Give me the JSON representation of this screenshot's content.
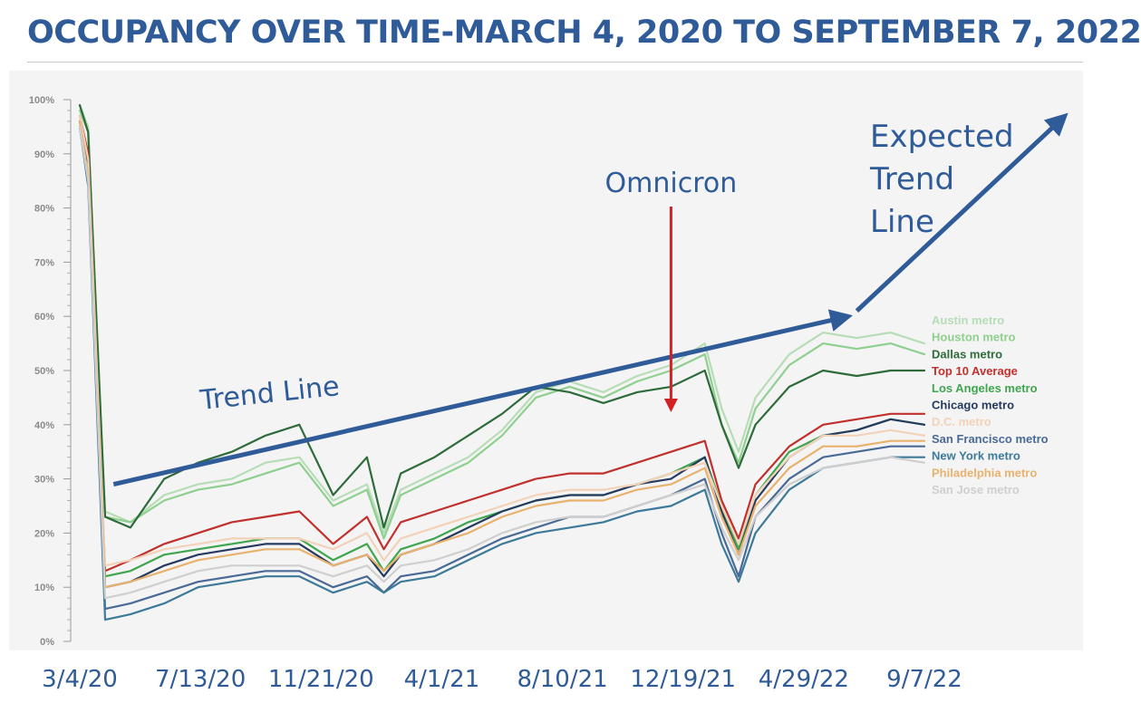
{
  "chart_data": {
    "type": "line",
    "title": "OCCUPANCY OVER TIME-MARCH 4, 2020 TO SEPTEMBER 7, 2022",
    "xlabel": "",
    "ylabel": "",
    "x_tick_labels": [
      "3/4/20",
      "7/13/20",
      "11/21/20",
      "4/1/21",
      "8/10/21",
      "12/19/21",
      "4/29/22",
      "9/7/22"
    ],
    "y_ticks": [
      "0%",
      "10%",
      "20%",
      "30%",
      "40%",
      "50%",
      "60%",
      "70%",
      "80%",
      "90%",
      "100%"
    ],
    "ylim": [
      0,
      100
    ],
    "grid": false,
    "legend_position": "right",
    "x_period_fractions": [
      0,
      0.01,
      0.03,
      0.06,
      0.1,
      0.14,
      0.18,
      0.22,
      0.26,
      0.3,
      0.34,
      0.36,
      0.38,
      0.42,
      0.46,
      0.5,
      0.54,
      0.58,
      0.62,
      0.66,
      0.7,
      0.74,
      0.76,
      0.78,
      0.8,
      0.84,
      0.88,
      0.92,
      0.96,
      1.0
    ],
    "series": [
      {
        "name": "Austin metro",
        "color": "#b7ddb7",
        "values": [
          99,
          95,
          24,
          22,
          27,
          29,
          30,
          33,
          34,
          26,
          29,
          20,
          28,
          31,
          34,
          39,
          46,
          48,
          46,
          49,
          51,
          55,
          43,
          35,
          45,
          53,
          57,
          56,
          57,
          55
        ]
      },
      {
        "name": "Houston metro",
        "color": "#8fcf8f",
        "values": [
          98,
          94,
          23,
          22,
          26,
          28,
          29,
          31,
          33,
          25,
          28,
          19,
          27,
          30,
          33,
          38,
          45,
          47,
          45,
          48,
          50,
          53,
          40,
          33,
          43,
          51,
          55,
          54,
          55,
          53
        ]
      },
      {
        "name": "Dallas metro",
        "color": "#2e6b3a",
        "values": [
          99,
          94,
          23,
          21,
          30,
          33,
          35,
          38,
          40,
          27,
          34,
          21,
          31,
          34,
          38,
          42,
          47,
          46,
          44,
          46,
          47,
          50,
          40,
          32,
          40,
          47,
          50,
          49,
          50,
          50
        ]
      },
      {
        "name": "Top 10 Average",
        "color": "#c0302d",
        "values": [
          97,
          90,
          13,
          15,
          18,
          20,
          22,
          23,
          24,
          18,
          23,
          17,
          22,
          24,
          26,
          28,
          30,
          31,
          31,
          33,
          35,
          37,
          26,
          19,
          29,
          36,
          40,
          41,
          42,
          42
        ]
      },
      {
        "name": "Los Angeles metro",
        "color": "#3fa64f",
        "values": [
          96,
          89,
          12,
          13,
          16,
          17,
          18,
          19,
          19,
          15,
          18,
          13,
          17,
          19,
          22,
          24,
          26,
          27,
          27,
          29,
          31,
          34,
          25,
          17,
          27,
          35,
          38,
          39,
          41,
          40
        ]
      },
      {
        "name": "Chicago metro",
        "color": "#253a5e",
        "values": [
          96,
          88,
          10,
          11,
          14,
          16,
          17,
          18,
          18,
          14,
          16,
          12,
          16,
          18,
          21,
          24,
          26,
          27,
          27,
          29,
          30,
          34,
          24,
          16,
          26,
          34,
          38,
          39,
          41,
          40
        ]
      },
      {
        "name": "D.C. metro",
        "color": "#f2d2b8",
        "values": [
          97,
          89,
          14,
          15,
          17,
          18,
          19,
          19,
          19,
          17,
          20,
          15,
          19,
          21,
          23,
          25,
          27,
          28,
          28,
          29,
          31,
          33,
          25,
          18,
          27,
          34,
          38,
          38,
          39,
          38
        ]
      },
      {
        "name": "San Francisco metro",
        "color": "#4a6a96",
        "values": [
          95,
          85,
          6,
          7,
          9,
          11,
          12,
          13,
          13,
          10,
          12,
          9,
          12,
          13,
          16,
          19,
          21,
          23,
          23,
          25,
          27,
          30,
          20,
          12,
          23,
          30,
          34,
          35,
          36,
          36
        ]
      },
      {
        "name": "New York metro",
        "color": "#3d7a9a",
        "values": [
          95,
          84,
          4,
          5,
          7,
          10,
          11,
          12,
          12,
          9,
          11,
          9,
          11,
          12,
          15,
          18,
          20,
          21,
          22,
          24,
          25,
          28,
          18,
          11,
          20,
          28,
          32,
          33,
          34,
          34
        ]
      },
      {
        "name": "Philadelphia metro",
        "color": "#e8b26e",
        "values": [
          96,
          86,
          10,
          11,
          13,
          15,
          16,
          17,
          17,
          14,
          16,
          13,
          16,
          18,
          20,
          23,
          25,
          26,
          26,
          28,
          29,
          32,
          23,
          16,
          25,
          32,
          36,
          36,
          37,
          37
        ]
      },
      {
        "name": "San Jose metro",
        "color": "#cfcfcf",
        "values": [
          95,
          85,
          8,
          9,
          11,
          13,
          14,
          14,
          14,
          12,
          14,
          11,
          14,
          15,
          17,
          20,
          22,
          23,
          23,
          25,
          27,
          29,
          21,
          15,
          23,
          29,
          32,
          33,
          34,
          33
        ]
      }
    ],
    "annotations": [
      {
        "name": "trend",
        "text": "Trend Line",
        "color": "#2f5b98",
        "from": [
          0.04,
          29
        ],
        "to": [
          0.91,
          60
        ]
      },
      {
        "name": "expected",
        "text_lines": [
          "Expected",
          "Trend",
          "Line"
        ],
        "color": "#2f5b98",
        "from": [
          0.92,
          61
        ],
        "to": [
          1.17,
          100
        ]
      },
      {
        "name": "omicron",
        "text": "Omnicron",
        "color": "#2f5b98",
        "arrow_color": "#d32027",
        "from": [
          0.7,
          81
        ],
        "to": [
          0.7,
          43
        ]
      }
    ]
  }
}
